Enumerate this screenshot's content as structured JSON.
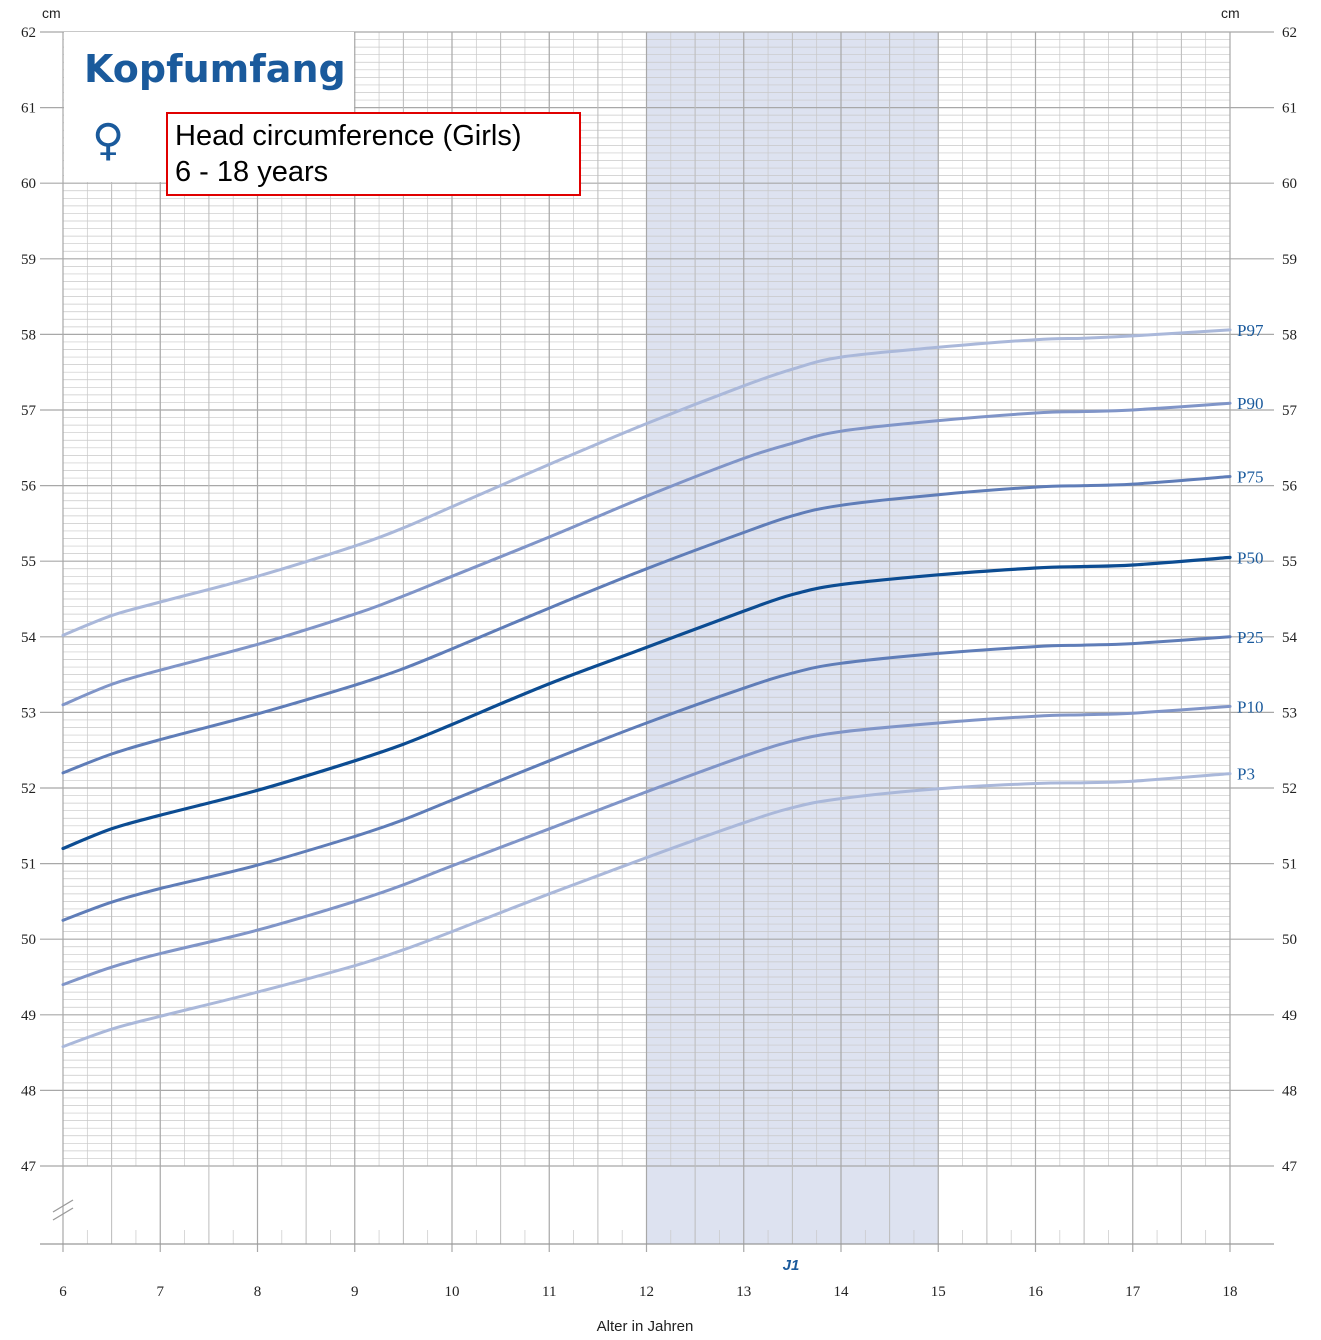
{
  "header": {
    "title": "Kopfumfang",
    "sex_symbol": "♀",
    "note_line1": "Head circumference (Girls)",
    "note_line2": "6 - 18 years"
  },
  "colors": {
    "grid": "#c8c8c8",
    "band": "#dde2f0",
    "title": "#1a5a9c",
    "p3_p97": "#aab8da",
    "p10_p90": "#8095c8",
    "p25_p75": "#5f7db8",
    "p50": "#0c4c92",
    "note_border": "#e00000"
  },
  "chart_data": {
    "type": "line",
    "title": "Kopfumfang",
    "subtitle": "Head circumference (Girls) 6 - 18 years",
    "xlabel": "Alter in Jahren",
    "ylabel": "cm",
    "y_unit": "cm",
    "xlim": [
      6,
      18
    ],
    "ylim": [
      47,
      62
    ],
    "x_ticks": [
      6,
      7,
      8,
      9,
      10,
      11,
      12,
      13,
      14,
      15,
      16,
      17,
      18
    ],
    "y_ticks": [
      47,
      48,
      49,
      50,
      51,
      52,
      53,
      54,
      55,
      56,
      57,
      58,
      59,
      60,
      61,
      62
    ],
    "grid": true,
    "shaded_range": {
      "x_from": 12,
      "x_to": 15,
      "label": "J1"
    },
    "x": [
      6,
      6.5,
      7,
      8,
      9,
      9.5,
      10,
      11,
      12,
      13,
      13.5,
      14,
      15,
      16,
      16.5,
      17,
      18
    ],
    "series": [
      {
        "name": "P97",
        "values": [
          54.02,
          54.28,
          54.46,
          54.8,
          55.2,
          55.44,
          55.72,
          56.28,
          56.82,
          57.32,
          57.54,
          57.7,
          57.83,
          57.93,
          57.95,
          57.98,
          58.06
        ]
      },
      {
        "name": "P90",
        "values": [
          53.1,
          53.37,
          53.56,
          53.9,
          54.3,
          54.54,
          54.8,
          55.32,
          55.86,
          56.36,
          56.56,
          56.72,
          56.86,
          56.96,
          56.98,
          57.0,
          57.09
        ]
      },
      {
        "name": "P75",
        "values": [
          52.2,
          52.45,
          52.64,
          52.98,
          53.36,
          53.58,
          53.84,
          54.38,
          54.9,
          55.38,
          55.6,
          55.74,
          55.88,
          55.98,
          56.0,
          56.02,
          56.12
        ]
      },
      {
        "name": "P50",
        "values": [
          51.2,
          51.46,
          51.64,
          51.97,
          52.36,
          52.58,
          52.84,
          53.38,
          53.86,
          54.34,
          54.56,
          54.69,
          54.82,
          54.91,
          54.93,
          54.95,
          55.05
        ]
      },
      {
        "name": "P25",
        "values": [
          50.25,
          50.49,
          50.67,
          50.98,
          51.36,
          51.58,
          51.84,
          52.36,
          52.86,
          53.32,
          53.52,
          53.65,
          53.78,
          53.87,
          53.89,
          53.91,
          54.0
        ]
      },
      {
        "name": "P10",
        "values": [
          49.4,
          49.63,
          49.81,
          50.12,
          50.5,
          50.72,
          50.97,
          51.46,
          51.95,
          52.42,
          52.62,
          52.74,
          52.86,
          52.95,
          52.97,
          52.99,
          53.08
        ]
      },
      {
        "name": "P3",
        "values": [
          48.58,
          48.81,
          48.98,
          49.3,
          49.65,
          49.86,
          50.1,
          50.6,
          51.08,
          51.54,
          51.74,
          51.86,
          51.99,
          52.06,
          52.07,
          52.09,
          52.19
        ]
      }
    ]
  }
}
